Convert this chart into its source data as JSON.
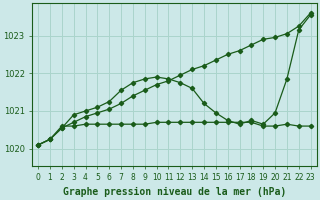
{
  "bg_color": "#cce8e8",
  "grid_color": "#aad4cc",
  "line_color": "#1a5c1a",
  "title": "Graphe pression niveau de la mer (hPa)",
  "xlim": [
    -0.5,
    23.5
  ],
  "ylim": [
    1019.55,
    1023.85
  ],
  "yticks": [
    1020,
    1021,
    1022,
    1023
  ],
  "xticks": [
    0,
    1,
    2,
    3,
    4,
    5,
    6,
    7,
    8,
    9,
    10,
    11,
    12,
    13,
    14,
    15,
    16,
    17,
    18,
    19,
    20,
    21,
    22,
    23
  ],
  "series_linear": {
    "x": [
      0,
      1,
      2,
      3,
      4,
      5,
      6,
      7,
      8,
      9,
      10,
      11,
      12,
      13,
      14,
      15,
      16,
      17,
      18,
      19,
      20,
      21,
      22,
      23
    ],
    "y": [
      1020.1,
      1020.25,
      1020.55,
      1020.7,
      1020.85,
      1020.95,
      1021.05,
      1021.2,
      1021.4,
      1021.55,
      1021.7,
      1021.8,
      1021.95,
      1022.1,
      1022.2,
      1022.35,
      1022.5,
      1022.6,
      1022.75,
      1022.9,
      1022.95,
      1023.05,
      1023.25,
      1023.6
    ]
  },
  "series_bell": {
    "x": [
      0,
      1,
      2,
      3,
      4,
      5,
      6,
      7,
      8,
      9,
      10,
      11,
      12,
      13,
      14,
      15,
      16,
      17,
      18,
      19,
      20,
      21,
      22,
      23
    ],
    "y": [
      1020.1,
      1020.25,
      1020.55,
      1020.9,
      1021.0,
      1021.1,
      1021.25,
      1021.55,
      1021.75,
      1021.85,
      1021.9,
      1021.85,
      1021.75,
      1021.6,
      1021.2,
      1020.95,
      1020.75,
      1020.65,
      1020.75,
      1020.65,
      1020.95,
      1021.85,
      1023.15,
      1023.55
    ]
  },
  "series_flat": {
    "x": [
      0,
      1,
      2,
      3,
      4,
      5,
      6,
      7,
      8,
      9,
      10,
      11,
      12,
      13,
      14,
      15,
      16,
      17,
      18,
      19,
      20,
      21,
      22,
      23
    ],
    "y": [
      1020.1,
      1020.25,
      1020.6,
      1020.6,
      1020.65,
      1020.65,
      1020.65,
      1020.65,
      1020.65,
      1020.65,
      1020.7,
      1020.7,
      1020.7,
      1020.7,
      1020.7,
      1020.7,
      1020.7,
      1020.7,
      1020.7,
      1020.6,
      1020.6,
      1020.65,
      1020.6,
      1020.6
    ]
  },
  "title_fontsize": 7.0,
  "tick_fontsize": 5.5
}
